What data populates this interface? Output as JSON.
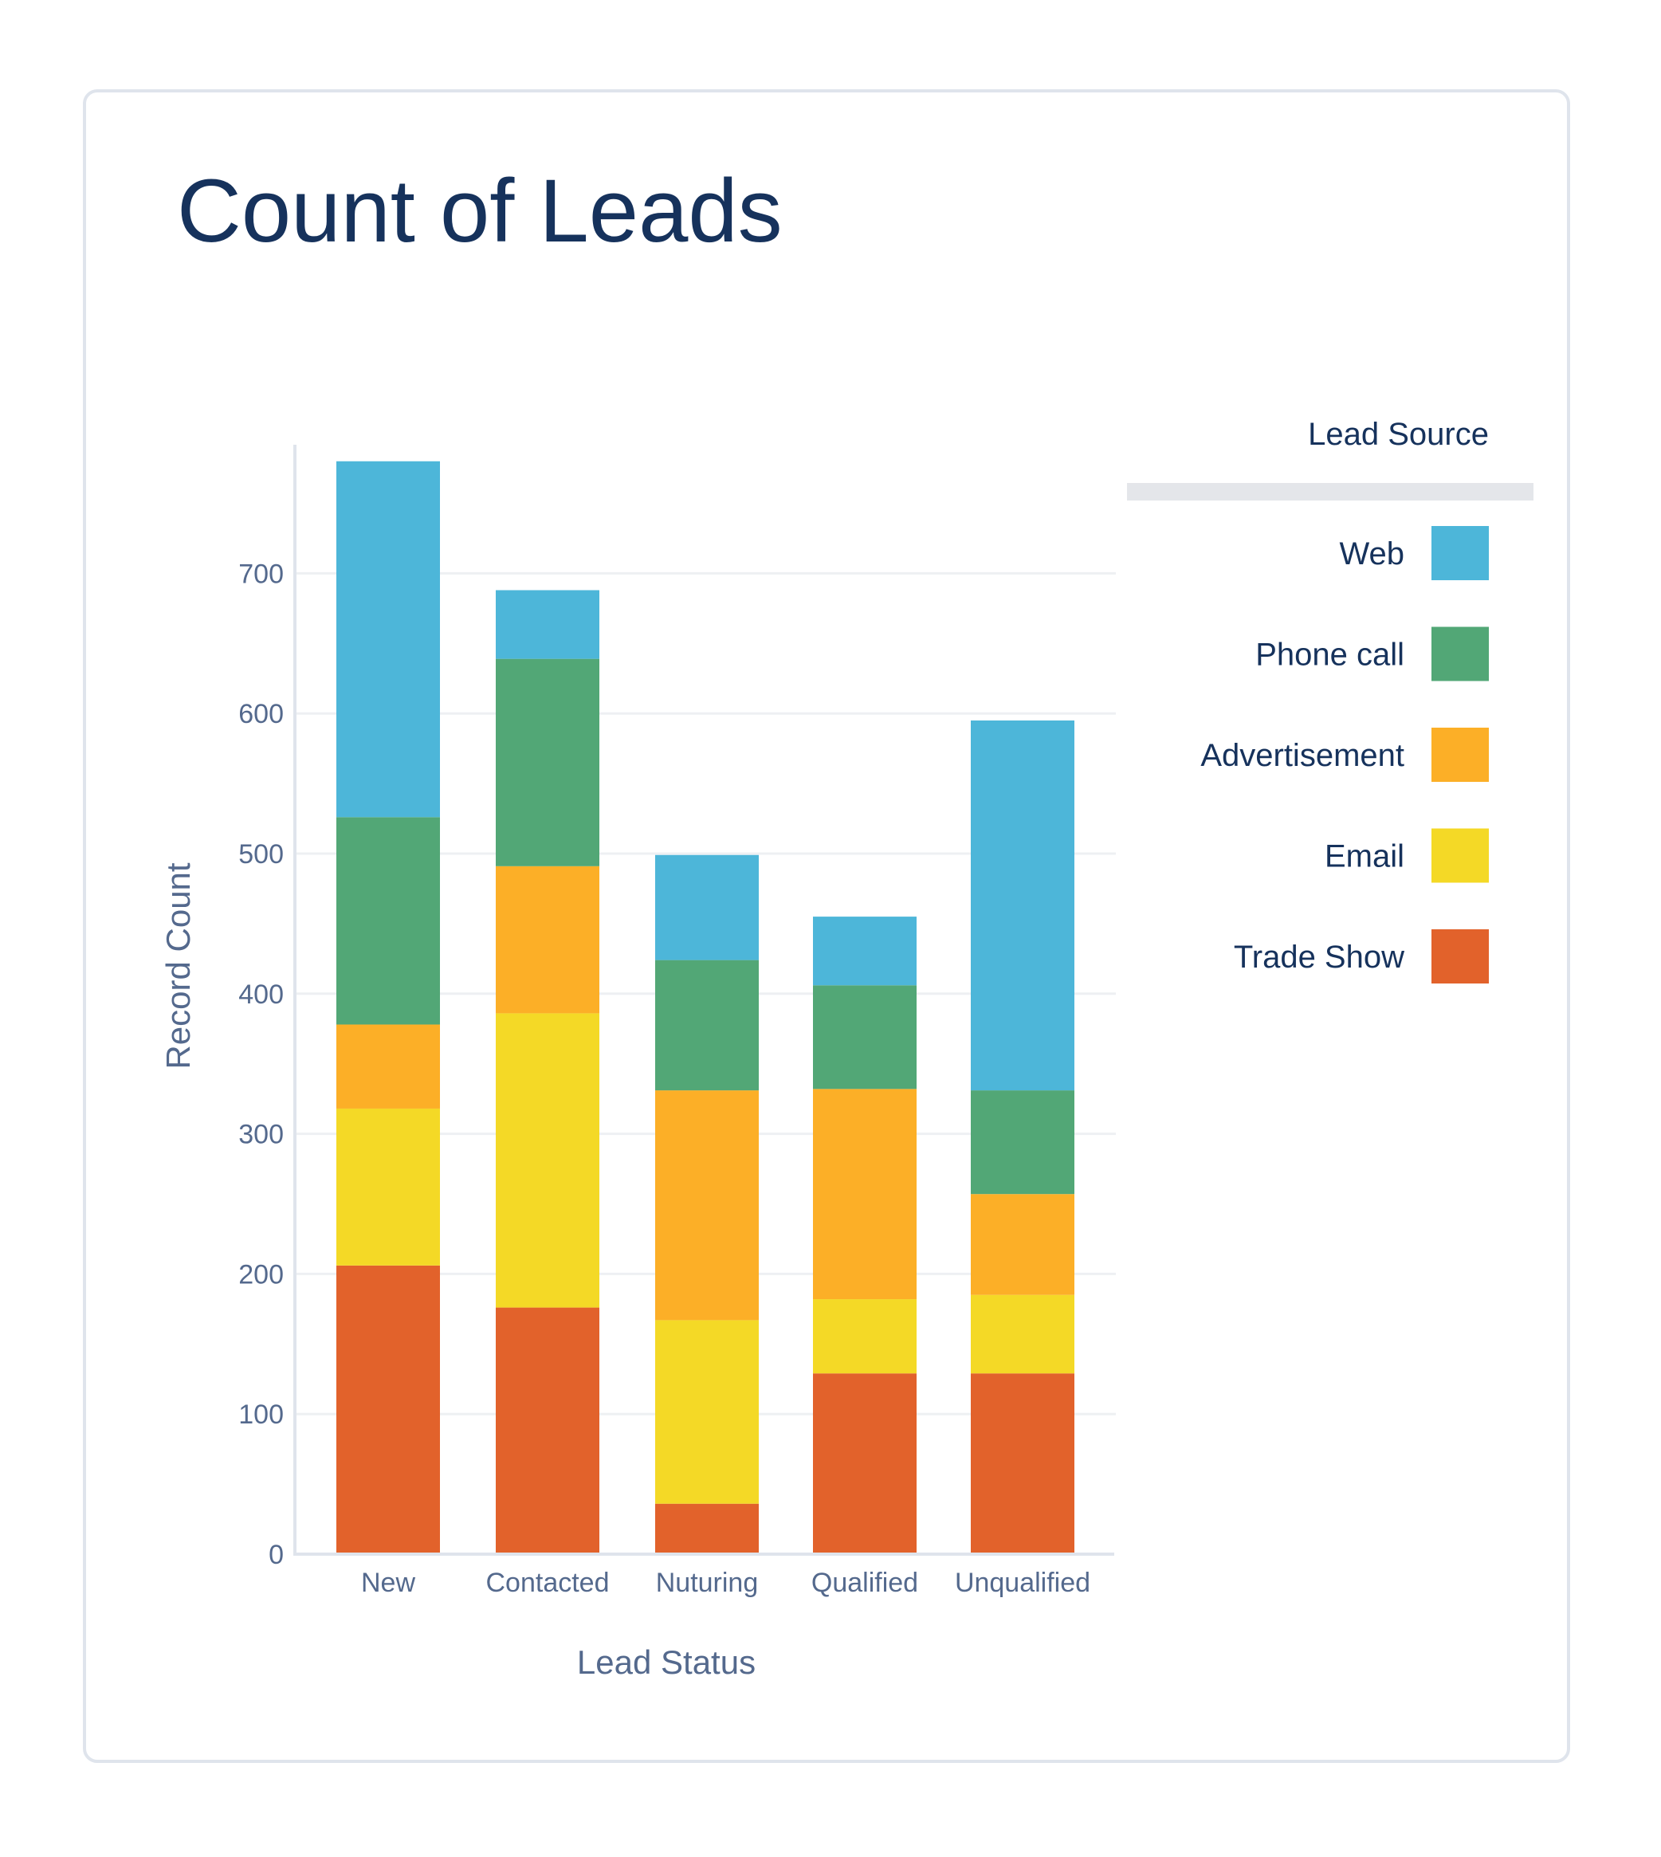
{
  "chart_data": {
    "type": "bar",
    "stacked": true,
    "title": "Count of Leads",
    "xlabel": "Lead Status",
    "ylabel": "Record Count",
    "categories": [
      "New",
      "Contacted",
      "Nuturing",
      "Qualified",
      "Unqualified"
    ],
    "yticks": [
      0,
      100,
      200,
      300,
      400,
      500,
      600,
      700
    ],
    "ylim": [
      0,
      800
    ],
    "grid": true,
    "legend": {
      "title": "Lead Source",
      "position": "right"
    },
    "series": [
      {
        "name": "Trade Show",
        "color": "#e2622b",
        "values": [
          206,
          176,
          36,
          129,
          129
        ]
      },
      {
        "name": "Email",
        "color": "#f4d926",
        "values": [
          112,
          210,
          131,
          53,
          56
        ]
      },
      {
        "name": "Advertisement",
        "color": "#fcaf27",
        "values": [
          60,
          105,
          164,
          150,
          72
        ]
      },
      {
        "name": "Phone call",
        "color": "#52a776",
        "values": [
          148,
          148,
          93,
          74,
          74
        ]
      },
      {
        "name": "Web",
        "color": "#4db6d9",
        "values": [
          254,
          49,
          75,
          49,
          264
        ]
      }
    ]
  }
}
